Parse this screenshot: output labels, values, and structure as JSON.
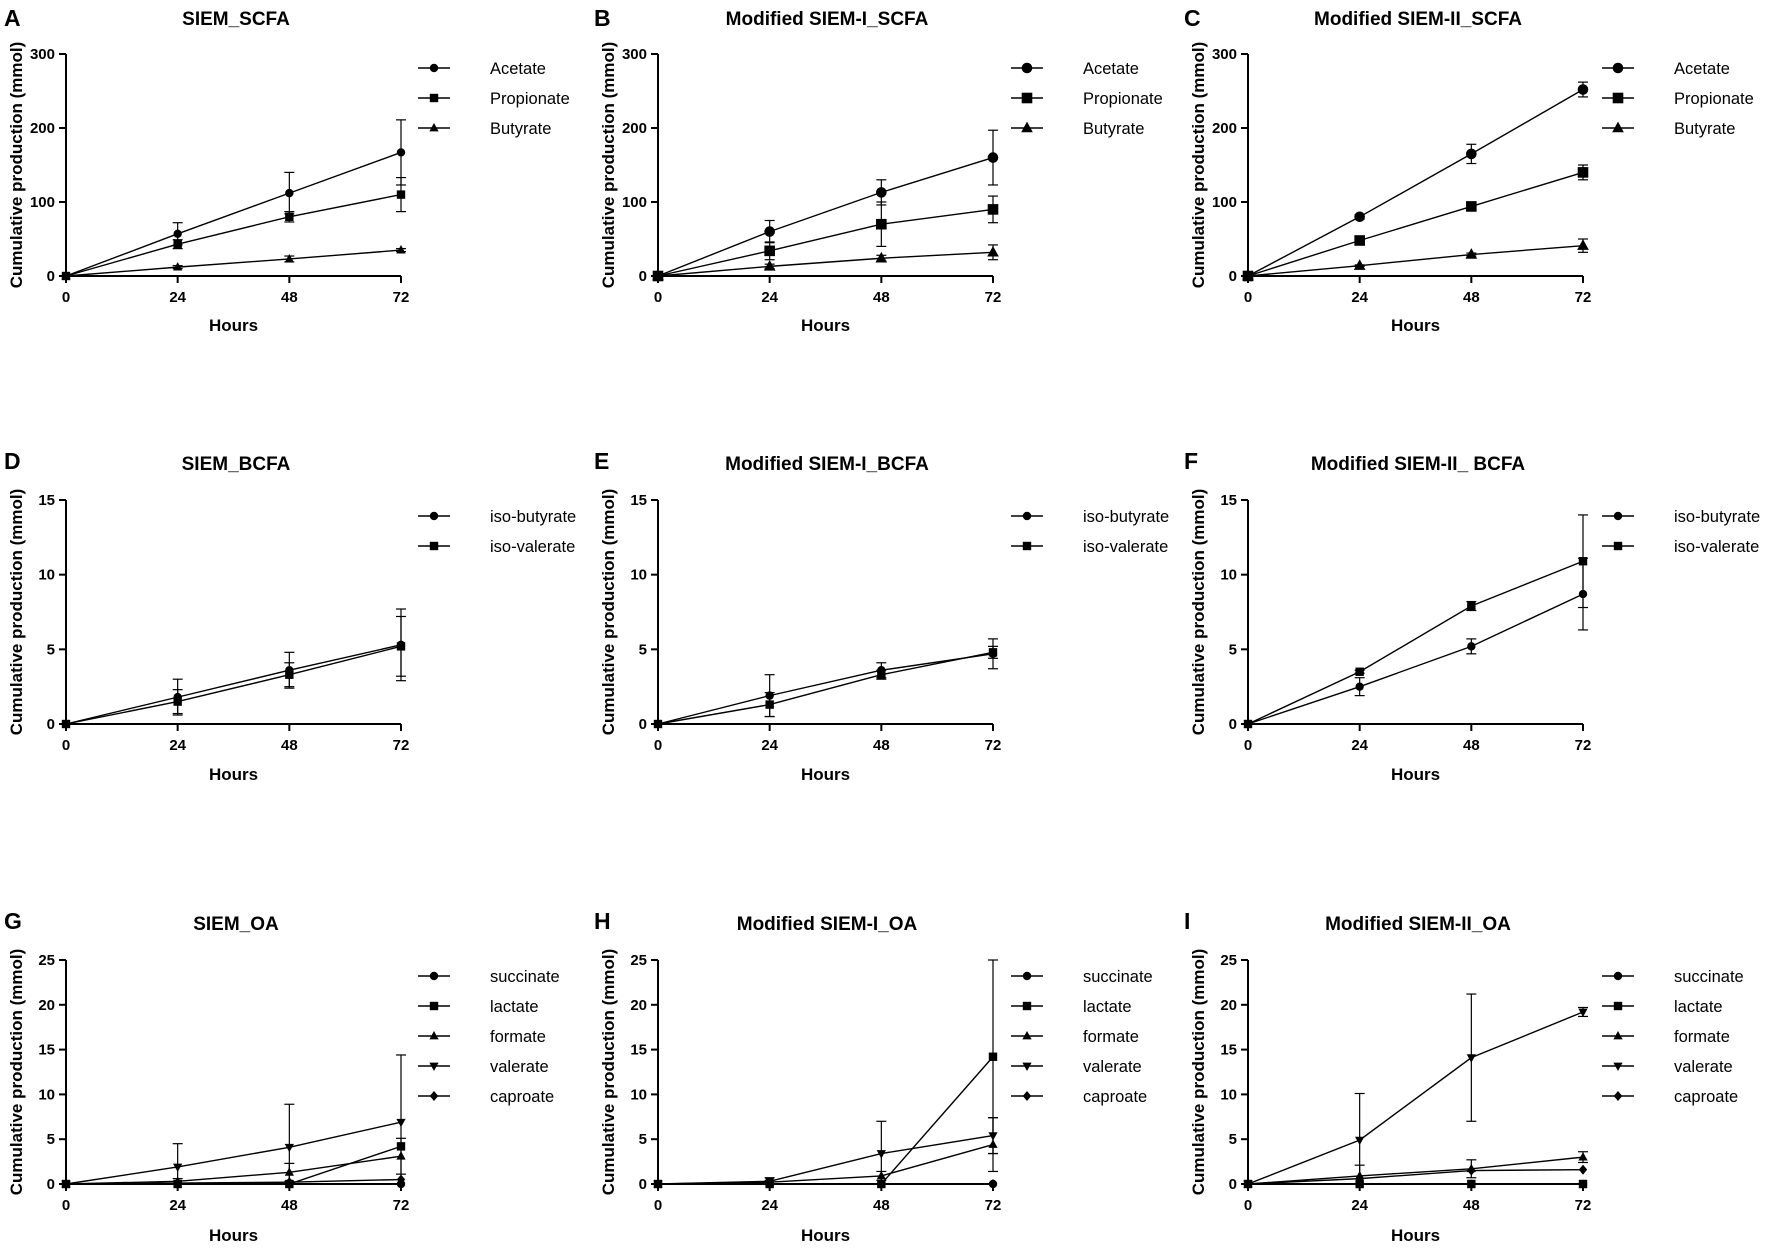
{
  "chart_data": [
    {
      "type": "line",
      "panel": "A",
      "title": "SIEM_SCFA",
      "xlabel": "Hours",
      "ylabel": "Cumulative production (mmol)",
      "x": [
        0,
        24,
        48,
        72
      ],
      "xticks": [
        "0",
        "24",
        "48",
        "72"
      ],
      "ylim": [
        0,
        300
      ],
      "yticks": [
        "0",
        "100",
        "200",
        "300"
      ],
      "series": [
        {
          "name": "Acetate",
          "marker": "circle",
          "values": [
            0,
            57,
            112,
            167
          ],
          "errors": [
            0,
            15,
            28,
            44
          ]
        },
        {
          "name": "Propionate",
          "marker": "square",
          "values": [
            0,
            43,
            80,
            110
          ],
          "errors": [
            0,
            6,
            7,
            23
          ]
        },
        {
          "name": "Butyrate",
          "marker": "triangle",
          "values": [
            0,
            12,
            23,
            35
          ],
          "errors": [
            0,
            2,
            4,
            2
          ]
        }
      ]
    },
    {
      "type": "line",
      "panel": "B",
      "title": "Modified SIEM-I_SCFA",
      "xlabel": "Hours",
      "ylabel": "Cumulative production (mmol)",
      "x": [
        0,
        24,
        48,
        72
      ],
      "xticks": [
        "0",
        "24",
        "48",
        "72"
      ],
      "ylim": [
        0,
        300
      ],
      "yticks": [
        "0",
        "100",
        "200",
        "300"
      ],
      "series": [
        {
          "name": "Acetate",
          "marker": "circle",
          "values": [
            0,
            60,
            113,
            160
          ],
          "errors": [
            0,
            15,
            17,
            37
          ]
        },
        {
          "name": "Propionate",
          "marker": "square",
          "values": [
            0,
            34,
            70,
            90
          ],
          "errors": [
            0,
            12,
            30,
            18
          ]
        },
        {
          "name": "Butyrate",
          "marker": "triangle",
          "values": [
            0,
            13,
            24,
            32
          ],
          "errors": [
            0,
            3,
            4,
            10
          ]
        }
      ]
    },
    {
      "type": "line",
      "panel": "C",
      "title": "Modified SIEM-II_SCFA",
      "xlabel": "Hours",
      "ylabel": "Cumulative production (mmol)",
      "x": [
        0,
        24,
        48,
        72
      ],
      "xticks": [
        "0",
        "24",
        "48",
        "72"
      ],
      "ylim": [
        0,
        300
      ],
      "yticks": [
        "0",
        "100",
        "200",
        "300"
      ],
      "series": [
        {
          "name": "Acetate",
          "marker": "circle",
          "values": [
            0,
            80,
            165,
            252
          ],
          "errors": [
            0,
            3,
            13,
            10
          ]
        },
        {
          "name": "Propionate",
          "marker": "square",
          "values": [
            0,
            48,
            94,
            140
          ],
          "errors": [
            0,
            2,
            4,
            10
          ]
        },
        {
          "name": "Butyrate",
          "marker": "triangle",
          "values": [
            0,
            14,
            29,
            41
          ],
          "errors": [
            0,
            1,
            2,
            9
          ]
        }
      ]
    },
    {
      "type": "line",
      "panel": "D",
      "title": "SIEM_BCFA",
      "xlabel": "Hours",
      "ylabel": "Cumulative production (mmol)",
      "x": [
        0,
        24,
        48,
        72
      ],
      "xticks": [
        "0",
        "24",
        "48",
        "72"
      ],
      "ylim": [
        0,
        15
      ],
      "yticks": [
        "0",
        "5",
        "10",
        "15"
      ],
      "series": [
        {
          "name": "iso-butyrate",
          "marker": "circle",
          "values": [
            0,
            1.8,
            3.6,
            5.3
          ],
          "errors": [
            0,
            1.2,
            1.2,
            2.4
          ]
        },
        {
          "name": "iso-valerate",
          "marker": "square",
          "values": [
            0,
            1.5,
            3.3,
            5.2
          ],
          "errors": [
            0,
            0.8,
            0.8,
            2.0
          ]
        }
      ]
    },
    {
      "type": "line",
      "panel": "E",
      "title": "Modified SIEM-I_BCFA",
      "xlabel": "Hours",
      "ylabel": "Cumulative production (mmol)",
      "x": [
        0,
        24,
        48,
        72
      ],
      "xticks": [
        "0",
        "24",
        "48",
        "72"
      ],
      "ylim": [
        0,
        15
      ],
      "yticks": [
        "0",
        "5",
        "10",
        "15"
      ],
      "series": [
        {
          "name": "iso-butyrate",
          "marker": "circle",
          "values": [
            0,
            1.9,
            3.6,
            4.7
          ],
          "errors": [
            0,
            1.4,
            0.5,
            1.0
          ]
        },
        {
          "name": "iso-valerate",
          "marker": "square",
          "values": [
            0,
            1.3,
            3.3,
            4.8
          ],
          "errors": [
            0,
            0.8,
            0.3,
            0.4
          ]
        }
      ]
    },
    {
      "type": "line",
      "panel": "F",
      "title": "Modified SIEM-II_ BCFA",
      "xlabel": "Hours",
      "ylabel": "Cumulative production (mmol)",
      "x": [
        0,
        24,
        48,
        72
      ],
      "xticks": [
        "0",
        "24",
        "48",
        "72"
      ],
      "ylim": [
        0,
        15
      ],
      "yticks": [
        "0",
        "5",
        "10",
        "15"
      ],
      "series": [
        {
          "name": "iso-butyrate",
          "marker": "circle",
          "values": [
            0,
            2.5,
            5.2,
            8.7
          ],
          "errors": [
            0,
            0.6,
            0.5,
            2.4
          ]
        },
        {
          "name": "iso-valerate",
          "marker": "square",
          "values": [
            0,
            3.5,
            7.9,
            10.9
          ],
          "errors": [
            0,
            0.1,
            0.3,
            3.1
          ]
        }
      ]
    },
    {
      "type": "line",
      "panel": "G",
      "title": "SIEM_OA",
      "xlabel": "Hours",
      "ylabel": "Cumulative production (mmol)",
      "x": [
        0,
        24,
        48,
        72
      ],
      "xticks": [
        "0",
        "24",
        "48",
        "72"
      ],
      "ylim": [
        0,
        25
      ],
      "yticks": [
        "0",
        "5",
        "10",
        "15",
        "20",
        "25"
      ],
      "series": [
        {
          "name": "succinate",
          "marker": "circle",
          "values": [
            0,
            0,
            0,
            0
          ],
          "errors": [
            0,
            0,
            0,
            0
          ]
        },
        {
          "name": "lactate",
          "marker": "square",
          "values": [
            0,
            0,
            0,
            4.2
          ],
          "errors": [
            0,
            0,
            0,
            0
          ]
        },
        {
          "name": "formate",
          "marker": "triangle",
          "values": [
            0,
            0.3,
            1.3,
            3.1
          ],
          "errors": [
            0,
            0.3,
            1.0,
            2.0
          ]
        },
        {
          "name": "valerate",
          "marker": "triangle-down",
          "values": [
            0,
            1.9,
            4.1,
            6.9
          ],
          "errors": [
            0,
            2.6,
            4.8,
            7.5
          ]
        },
        {
          "name": "caproate",
          "marker": "diamond",
          "values": [
            0,
            0.1,
            0.2,
            0.5
          ],
          "errors": [
            0,
            0,
            0,
            0
          ]
        }
      ]
    },
    {
      "type": "line",
      "panel": "H",
      "title": "Modified SIEM-I_OA",
      "xlabel": "Hours",
      "ylabel": "Cumulative production (mmol)",
      "x": [
        0,
        24,
        48,
        72
      ],
      "xticks": [
        "0",
        "24",
        "48",
        "72"
      ],
      "ylim": [
        0,
        25
      ],
      "yticks": [
        "0",
        "5",
        "10",
        "15",
        "20",
        "25"
      ],
      "series": [
        {
          "name": "succinate",
          "marker": "circle",
          "values": [
            0,
            0,
            0,
            0
          ],
          "errors": [
            0,
            0,
            0,
            0
          ]
        },
        {
          "name": "lactate",
          "marker": "square",
          "values": [
            0,
            0,
            0,
            14.2
          ],
          "errors": [
            0,
            0,
            0,
            10.8
          ]
        },
        {
          "name": "formate",
          "marker": "triangle",
          "values": [
            0,
            0.2,
            0.9,
            4.4
          ],
          "errors": [
            0,
            0.2,
            0.5,
            3.0
          ]
        },
        {
          "name": "valerate",
          "marker": "triangle-down",
          "values": [
            0,
            0.3,
            3.4,
            5.4
          ],
          "errors": [
            0,
            0.4,
            3.6,
            2.0
          ]
        },
        {
          "name": "caproate",
          "marker": "diamond",
          "values": [
            0,
            0,
            0,
            0
          ],
          "errors": [
            0,
            0,
            0,
            0
          ]
        }
      ]
    },
    {
      "type": "line",
      "panel": "I",
      "title": "Modified SIEM-II_OA",
      "xlabel": "Hours",
      "ylabel": "Cumulative production (mmol)",
      "x": [
        0,
        24,
        48,
        72
      ],
      "xticks": [
        "0",
        "24",
        "48",
        "72"
      ],
      "ylim": [
        0,
        25
      ],
      "yticks": [
        "0",
        "5",
        "10",
        "15",
        "20",
        "25"
      ],
      "series": [
        {
          "name": "succinate",
          "marker": "circle",
          "values": [
            0,
            0,
            0,
            0
          ],
          "errors": [
            0,
            0,
            0,
            0
          ]
        },
        {
          "name": "lactate",
          "marker": "square",
          "values": [
            0,
            0,
            0,
            0
          ],
          "errors": [
            0,
            0,
            0,
            0
          ]
        },
        {
          "name": "formate",
          "marker": "triangle",
          "values": [
            0,
            0.9,
            1.7,
            3.0
          ],
          "errors": [
            0,
            1.2,
            1.0,
            0.6
          ]
        },
        {
          "name": "valerate",
          "marker": "triangle-down",
          "values": [
            0,
            4.9,
            14.1,
            19.2
          ],
          "errors": [
            0,
            5.2,
            7.1,
            0.5
          ]
        },
        {
          "name": "caproate",
          "marker": "diamond",
          "values": [
            0,
            0.6,
            1.5,
            1.6
          ],
          "errors": [
            0,
            0,
            0,
            0
          ]
        }
      ]
    }
  ]
}
